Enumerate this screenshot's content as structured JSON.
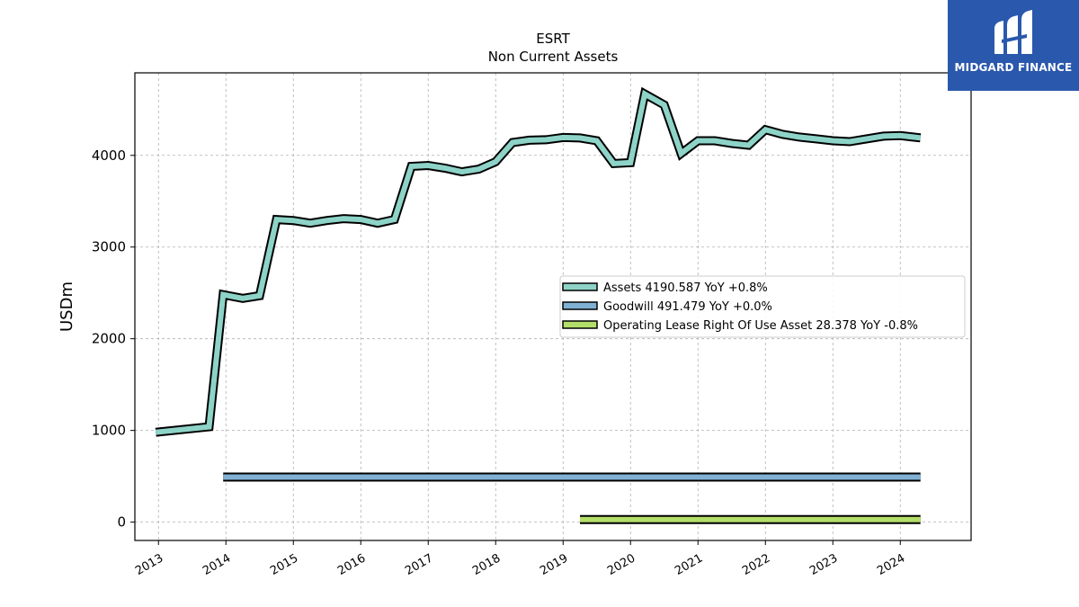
{
  "chart_data": {
    "type": "line",
    "title": "ESRT",
    "subtitle": "Non Current  Assets",
    "ylabel": "USDm",
    "xlabel": "",
    "xlim": [
      2012.65,
      2025.05
    ],
    "ylim": [
      -200,
      4900
    ],
    "yticks": [
      0,
      1000,
      2000,
      3000,
      4000
    ],
    "xticks": [
      2013,
      2014,
      2015,
      2016,
      2017,
      2018,
      2019,
      2020,
      2021,
      2022,
      2023,
      2024
    ],
    "grid": true,
    "legend_position": "center-right",
    "series": [
      {
        "name": "Assets",
        "legend": "Assets  4190.587 YoY +0.8%",
        "color": "#8dd3c7",
        "points": [
          [
            2012.96,
            980
          ],
          [
            2013.75,
            1040
          ],
          [
            2013.96,
            2480
          ],
          [
            2014.25,
            2440
          ],
          [
            2014.5,
            2470
          ],
          [
            2014.75,
            3300
          ],
          [
            2015.0,
            3290
          ],
          [
            2015.25,
            3260
          ],
          [
            2015.5,
            3290
          ],
          [
            2015.75,
            3310
          ],
          [
            2016.0,
            3300
          ],
          [
            2016.25,
            3260
          ],
          [
            2016.5,
            3300
          ],
          [
            2016.75,
            3880
          ],
          [
            2017.0,
            3890
          ],
          [
            2017.25,
            3860
          ],
          [
            2017.5,
            3820
          ],
          [
            2017.75,
            3850
          ],
          [
            2018.0,
            3930
          ],
          [
            2018.25,
            4140
          ],
          [
            2018.5,
            4165
          ],
          [
            2018.75,
            4170
          ],
          [
            2019.0,
            4195
          ],
          [
            2019.25,
            4190
          ],
          [
            2019.5,
            4160
          ],
          [
            2019.75,
            3910
          ],
          [
            2020.0,
            3920
          ],
          [
            2020.21,
            4670
          ],
          [
            2020.5,
            4550
          ],
          [
            2020.75,
            4020
          ],
          [
            2021.0,
            4160
          ],
          [
            2021.25,
            4160
          ],
          [
            2021.5,
            4130
          ],
          [
            2021.75,
            4110
          ],
          [
            2022.0,
            4280
          ],
          [
            2022.25,
            4230
          ],
          [
            2022.5,
            4200
          ],
          [
            2022.75,
            4180
          ],
          [
            2023.0,
            4160
          ],
          [
            2023.25,
            4150
          ],
          [
            2023.5,
            4180
          ],
          [
            2023.75,
            4210
          ],
          [
            2024.0,
            4215
          ],
          [
            2024.3,
            4191
          ]
        ]
      },
      {
        "name": "Goodwill",
        "legend": "Goodwill  491.479 YoY +0.0%",
        "color": "#80b1d3",
        "points": [
          [
            2013.96,
            491.479
          ],
          [
            2024.3,
            491.479
          ]
        ]
      },
      {
        "name": "Operating Lease Right Of Use Asset",
        "legend": "Operating Lease Right Of Use Asset  28.378 YoY -0.8%",
        "color": "#b3de69",
        "points": [
          [
            2019.25,
            28.6
          ],
          [
            2024.3,
            28.378
          ]
        ]
      }
    ]
  },
  "watermark": {
    "text": "MIDGARD FINANCE",
    "background": "#2a58ad"
  }
}
